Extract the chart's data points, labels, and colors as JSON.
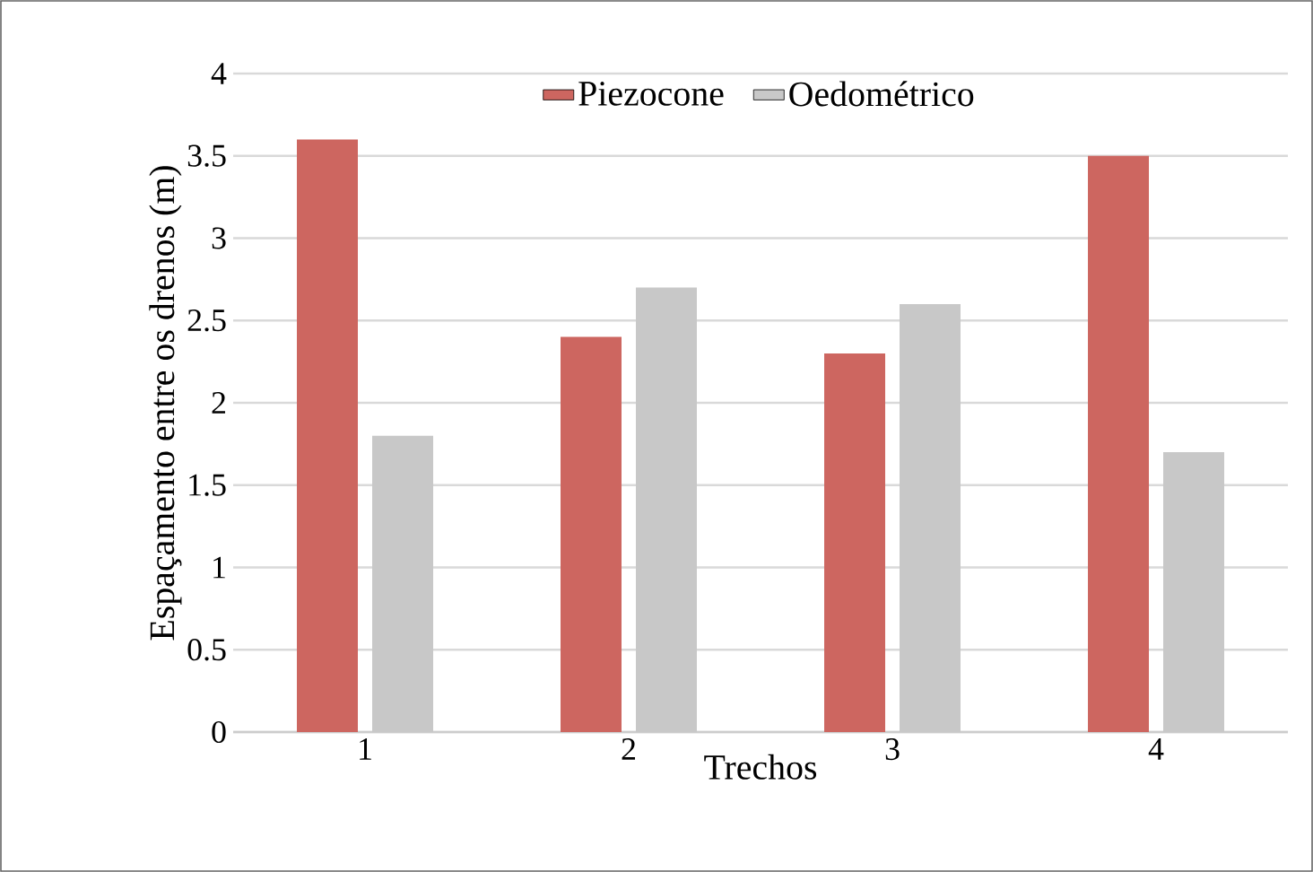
{
  "chart_data": {
    "type": "bar",
    "xlabel": "Trechos",
    "ylabel": "Espaçamento entre os drenos (m)",
    "categories": [
      "1",
      "2",
      "3",
      "4"
    ],
    "series": [
      {
        "name": "Piezocone",
        "color": "#cd6660",
        "values": [
          3.6,
          2.4,
          2.3,
          3.5
        ]
      },
      {
        "name": "Oedométrico",
        "color": "#c8c8c8",
        "values": [
          1.8,
          2.7,
          2.6,
          1.7
        ]
      }
    ],
    "ylim": [
      0,
      4
    ],
    "yticks": [
      0,
      0.5,
      1,
      1.5,
      2,
      2.5,
      3,
      3.5,
      4
    ],
    "grid": "y",
    "legend": "top"
  }
}
